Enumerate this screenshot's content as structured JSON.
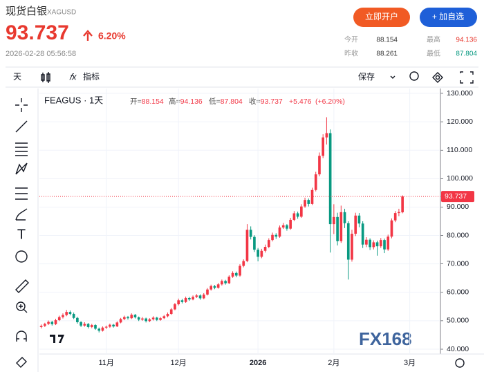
{
  "header": {
    "title": "现货白银",
    "symbol": "XAGUSD",
    "price": "93.737",
    "change": "6.20%",
    "timestamp": "2026-02-28 05:56:58",
    "buttons": [
      "立即开户",
      "+ 加自选"
    ],
    "stats": [
      {
        "label": "今开",
        "value": 88.154
      },
      {
        "label": "最高",
        "value": 94.136
      },
      {
        "label": "昨收",
        "value": 88.261
      },
      {
        "label": "最低",
        "value": 87.804
      }
    ]
  },
  "toolbar": {
    "interval": "天",
    "indicators": "指标",
    "save": "保存"
  },
  "chart_data": {
    "type": "candlestick",
    "legend": {
      "symbol": "FEAGUS · 1天",
      "fields": [
        {
          "label": "开=",
          "value": "88.154"
        },
        {
          "label": "高=",
          "value": "94.136"
        },
        {
          "label": "低=",
          "value": "87.804"
        },
        {
          "label": "收=",
          "value": "93.737"
        },
        {
          "label": "",
          "value": "+5.476"
        },
        {
          "label": "",
          "value": "(+6.20%)"
        }
      ]
    },
    "watermark": "FX168",
    "up_color": "#f23645",
    "down_color": "#089981",
    "grid": true,
    "ylim": [
      38.3,
      131.7
    ],
    "yticks": [
      {
        "value": 40,
        "label": "40.000"
      },
      {
        "value": 50,
        "label": "50.000"
      },
      {
        "value": 60,
        "label": "60.000"
      },
      {
        "value": 70,
        "label": "70.000"
      },
      {
        "value": 80,
        "label": "80.000"
      },
      {
        "value": 90,
        "label": "90.000"
      },
      {
        "value": 100,
        "label": "100.000"
      },
      {
        "value": 110,
        "label": "110.000"
      },
      {
        "value": 120,
        "label": "120.000"
      },
      {
        "value": 130,
        "label": "130.000"
      }
    ],
    "categories": [
      null,
      null,
      null,
      null,
      null,
      null,
      null,
      null,
      null,
      null,
      null,
      null,
      null,
      null,
      null,
      null,
      null,
      null,
      "11月",
      null,
      null,
      null,
      null,
      null,
      null,
      null,
      null,
      null,
      null,
      null,
      null,
      null,
      null,
      null,
      null,
      null,
      null,
      null,
      "12月",
      null,
      null,
      null,
      null,
      null,
      null,
      null,
      null,
      null,
      null,
      null,
      null,
      null,
      null,
      null,
      null,
      null,
      null,
      null,
      null,
      null,
      "2026",
      null,
      null,
      null,
      null,
      null,
      null,
      null,
      null,
      null,
      null,
      null,
      null,
      null,
      null,
      null,
      null,
      null,
      null,
      null,
      null,
      "2月",
      null,
      null,
      null,
      null,
      null,
      null,
      null,
      null,
      null,
      null,
      null,
      null,
      null,
      null,
      null,
      null,
      null,
      null,
      null,
      null,
      "3月",
      null,
      null,
      null,
      null,
      null,
      null,
      null,
      null
    ],
    "ohlc": [
      [
        47.8,
        48.7,
        47.3,
        48.2
      ],
      [
        48.2,
        49.3,
        47.8,
        48.9
      ],
      [
        48.9,
        50.1,
        48.5,
        49.6
      ],
      [
        49.6,
        50.0,
        48.3,
        48.8
      ],
      [
        48.8,
        50.7,
        48.5,
        50.2
      ],
      [
        50.2,
        51.8,
        49.9,
        51.3
      ],
      [
        51.3,
        52.6,
        50.8,
        52.0
      ],
      [
        52.0,
        53.8,
        51.6,
        53.1
      ],
      [
        53.1,
        53.6,
        51.9,
        52.4
      ],
      [
        52.4,
        52.9,
        50.6,
        51.0
      ],
      [
        51.0,
        51.4,
        49.0,
        49.5
      ],
      [
        49.5,
        49.9,
        47.8,
        48.3
      ],
      [
        48.3,
        49.5,
        47.9,
        48.9
      ],
      [
        48.9,
        49.2,
        47.3,
        47.8
      ],
      [
        47.8,
        48.9,
        47.4,
        48.5
      ],
      [
        48.5,
        48.8,
        46.8,
        47.2
      ],
      [
        47.2,
        47.6,
        45.9,
        46.5
      ],
      [
        46.5,
        48.0,
        46.2,
        47.6
      ],
      [
        47.6,
        48.3,
        47.1,
        47.9
      ],
      [
        47.9,
        49.0,
        47.5,
        48.6
      ],
      [
        48.6,
        48.9,
        47.6,
        48.0
      ],
      [
        48.0,
        49.8,
        47.8,
        49.4
      ],
      [
        49.4,
        51.0,
        49.1,
        50.6
      ],
      [
        50.6,
        51.8,
        50.2,
        51.3
      ],
      [
        51.3,
        51.7,
        50.4,
        50.9
      ],
      [
        50.9,
        52.6,
        50.6,
        52.1
      ],
      [
        52.1,
        52.4,
        50.8,
        51.2
      ],
      [
        51.2,
        51.5,
        49.9,
        50.4
      ],
      [
        50.4,
        51.3,
        50.0,
        50.8
      ],
      [
        50.8,
        51.1,
        49.4,
        49.9
      ],
      [
        49.9,
        50.9,
        49.5,
        50.5
      ],
      [
        50.5,
        51.6,
        50.1,
        51.1
      ],
      [
        51.1,
        51.4,
        49.9,
        50.3
      ],
      [
        50.3,
        51.3,
        50.0,
        50.9
      ],
      [
        50.9,
        52.0,
        50.6,
        51.6
      ],
      [
        51.6,
        52.9,
        51.2,
        52.4
      ],
      [
        52.4,
        54.5,
        52.1,
        54.0
      ],
      [
        54.0,
        56.3,
        53.7,
        55.8
      ],
      [
        55.8,
        57.8,
        55.4,
        57.2
      ],
      [
        57.2,
        57.7,
        56.1,
        56.6
      ],
      [
        56.6,
        58.5,
        56.3,
        58.0
      ],
      [
        58.0,
        58.4,
        57.0,
        57.5
      ],
      [
        57.5,
        58.9,
        57.2,
        58.4
      ],
      [
        58.4,
        59.4,
        58.0,
        58.9
      ],
      [
        58.9,
        59.3,
        57.4,
        57.9
      ],
      [
        57.9,
        59.7,
        57.6,
        59.2
      ],
      [
        59.2,
        61.5,
        58.9,
        61.0
      ],
      [
        61.0,
        62.7,
        60.6,
        62.2
      ],
      [
        62.2,
        62.6,
        61.1,
        61.6
      ],
      [
        61.6,
        63.3,
        61.3,
        62.8
      ],
      [
        62.8,
        64.5,
        62.4,
        64.0
      ],
      [
        64.0,
        64.4,
        62.7,
        63.2
      ],
      [
        63.2,
        66.0,
        62.9,
        65.5
      ],
      [
        65.5,
        67.4,
        65.1,
        66.8
      ],
      [
        66.8,
        67.3,
        65.3,
        65.9
      ],
      [
        65.9,
        69.9,
        65.5,
        69.3
      ],
      [
        69.3,
        71.6,
        68.8,
        71.0
      ],
      [
        71.0,
        84.0,
        70.6,
        82.0
      ],
      [
        82.0,
        83.2,
        78.6,
        79.5
      ],
      [
        79.5,
        80.1,
        74.2,
        75.0
      ],
      [
        75.0,
        75.6,
        70.9,
        72.5
      ],
      [
        72.5,
        75.3,
        72.0,
        74.6
      ],
      [
        74.6,
        76.8,
        74.0,
        76.0
      ],
      [
        76.0,
        79.0,
        75.5,
        78.4
      ],
      [
        78.4,
        81.0,
        77.9,
        80.2
      ],
      [
        80.2,
        80.8,
        78.8,
        79.6
      ],
      [
        79.6,
        83.5,
        79.2,
        82.8
      ],
      [
        82.8,
        84.4,
        82.3,
        83.6
      ],
      [
        83.6,
        84.0,
        81.7,
        82.4
      ],
      [
        82.4,
        86.2,
        82.0,
        85.5
      ],
      [
        85.5,
        88.6,
        85.0,
        87.8
      ],
      [
        87.8,
        88.4,
        85.9,
        86.6
      ],
      [
        86.6,
        91.0,
        86.2,
        90.2
      ],
      [
        90.2,
        93.3,
        89.7,
        92.5
      ],
      [
        92.5,
        93.0,
        90.2,
        91.1
      ],
      [
        91.1,
        96.8,
        90.7,
        96.0
      ],
      [
        96.0,
        102.4,
        95.5,
        101.5
      ],
      [
        101.5,
        109.2,
        100.8,
        108.0
      ],
      [
        108.0,
        115.6,
        107.2,
        114.5
      ],
      [
        114.5,
        121.6,
        112.0,
        116.0
      ],
      [
        116.0,
        117.3,
        74.0,
        84.0
      ],
      [
        84.0,
        91.0,
        80.5,
        86.5
      ],
      [
        86.5,
        88.0,
        76.5,
        78.0
      ],
      [
        78.0,
        90.5,
        77.4,
        88.2
      ],
      [
        88.2,
        89.4,
        82.6,
        84.3
      ],
      [
        84.3,
        85.0,
        64.5,
        71.5
      ],
      [
        71.5,
        82.0,
        70.8,
        80.6
      ],
      [
        80.6,
        88.0,
        79.8,
        87.0
      ],
      [
        87.0,
        87.9,
        82.9,
        84.2
      ],
      [
        84.2,
        85.0,
        75.6,
        76.8
      ],
      [
        76.8,
        79.4,
        75.9,
        78.5
      ],
      [
        78.5,
        79.0,
        74.9,
        75.9
      ],
      [
        75.9,
        78.3,
        75.1,
        77.6
      ],
      [
        77.6,
        78.2,
        72.9,
        76.2
      ],
      [
        76.2,
        79.1,
        75.6,
        78.4
      ],
      [
        78.4,
        78.9,
        73.8,
        75.1
      ],
      [
        75.1,
        80.3,
        74.6,
        79.6
      ],
      [
        79.6,
        86.0,
        79.0,
        85.3
      ],
      [
        85.3,
        88.6,
        84.7,
        87.9
      ],
      [
        87.9,
        89.4,
        86.8,
        88.261
      ],
      [
        88.154,
        94.136,
        87.804,
        93.737
      ],
      null,
      null,
      null,
      null,
      null,
      null,
      null,
      null,
      null,
      null
    ]
  }
}
